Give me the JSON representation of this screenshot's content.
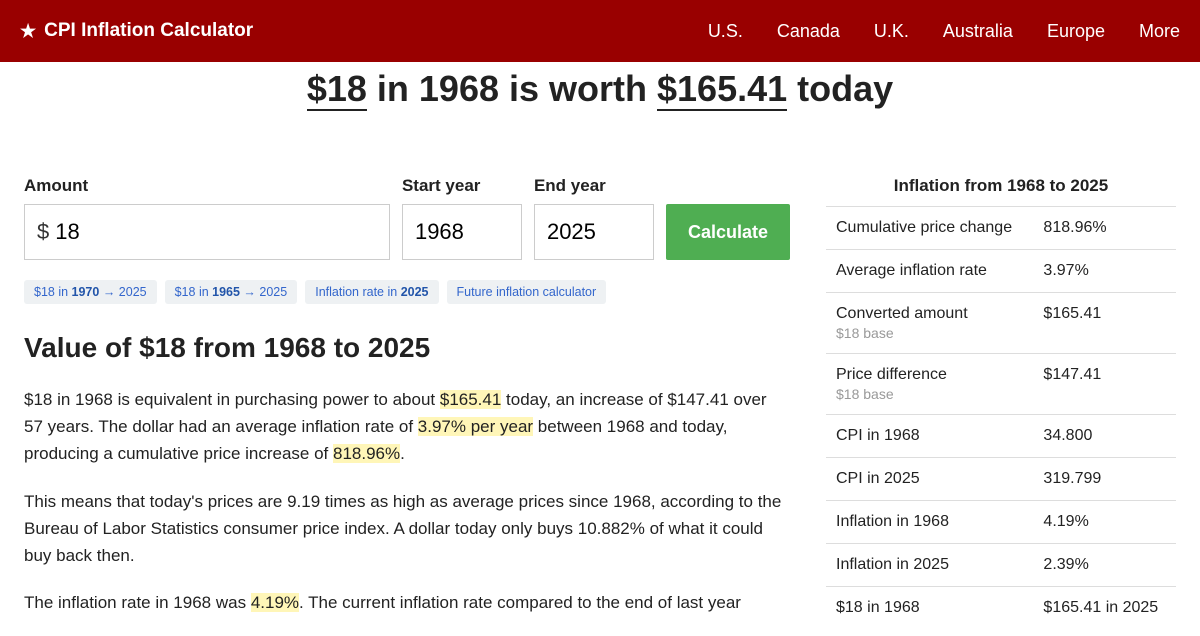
{
  "header": {
    "brand": "CPI Inflation Calculator",
    "nav": [
      "U.S.",
      "Canada",
      "U.K.",
      "Australia",
      "Europe",
      "More"
    ]
  },
  "title": {
    "amount": "$18",
    "mid1": " in 1968 is worth ",
    "result": "$165.41",
    "mid2": " today"
  },
  "form": {
    "amount_label": "Amount",
    "amount_prefix": "$",
    "amount_value": "18",
    "start_label": "Start year",
    "start_value": "1968",
    "end_label": "End year",
    "end_value": "2025",
    "button": "Calculate"
  },
  "chips": [
    {
      "pre": "$18 in ",
      "bold": "1970",
      "post": " → 2025"
    },
    {
      "pre": "$18 in ",
      "bold": "1965",
      "post": " → 2025"
    },
    {
      "pre": "Inflation rate in ",
      "bold": "2025",
      "post": ""
    },
    {
      "pre": "Future inflation calculator",
      "bold": "",
      "post": ""
    }
  ],
  "section_heading": "Value of $18 from 1968 to 2025",
  "para1": {
    "a": "$18 in 1968 is equivalent in purchasing power to about ",
    "h1": "$165.41",
    "b": " today, an increase of $147.41 over 57 years. The dollar had an average inflation rate of ",
    "h2": "3.97% per year",
    "c": " between 1968 and today, producing a cumulative price increase of ",
    "h3": "818.96%",
    "d": "."
  },
  "para2": "This means that today's prices are 9.19 times as high as average prices since 1968, according to the Bureau of Labor Statistics consumer price index. A dollar today only buys 10.882% of what it could buy back then.",
  "para3": {
    "a": "The inflation rate in 1968 was ",
    "h1": "4.19%",
    "b": ". The current inflation rate compared to the end of last year"
  },
  "sidebar": {
    "title": "Inflation from 1968 to 2025",
    "rows": [
      {
        "label": "Cumulative price change",
        "sub": "",
        "value": "818.96%"
      },
      {
        "label": "Average inflation rate",
        "sub": "",
        "value": "3.97%"
      },
      {
        "label": "Converted amount",
        "sub": "$18 base",
        "value": "$165.41"
      },
      {
        "label": "Price difference",
        "sub": "$18 base",
        "value": "$147.41"
      },
      {
        "label": "CPI in 1968",
        "sub": "",
        "value": "34.800"
      },
      {
        "label": "CPI in 2025",
        "sub": "",
        "value": "319.799"
      },
      {
        "label": "Inflation in 1968",
        "sub": "",
        "value": "4.19%"
      },
      {
        "label": "Inflation in 2025",
        "sub": "",
        "value": "2.39%"
      },
      {
        "label": "$18 in 1968",
        "sub": "",
        "value": "$165.41 in 2025"
      }
    ]
  }
}
